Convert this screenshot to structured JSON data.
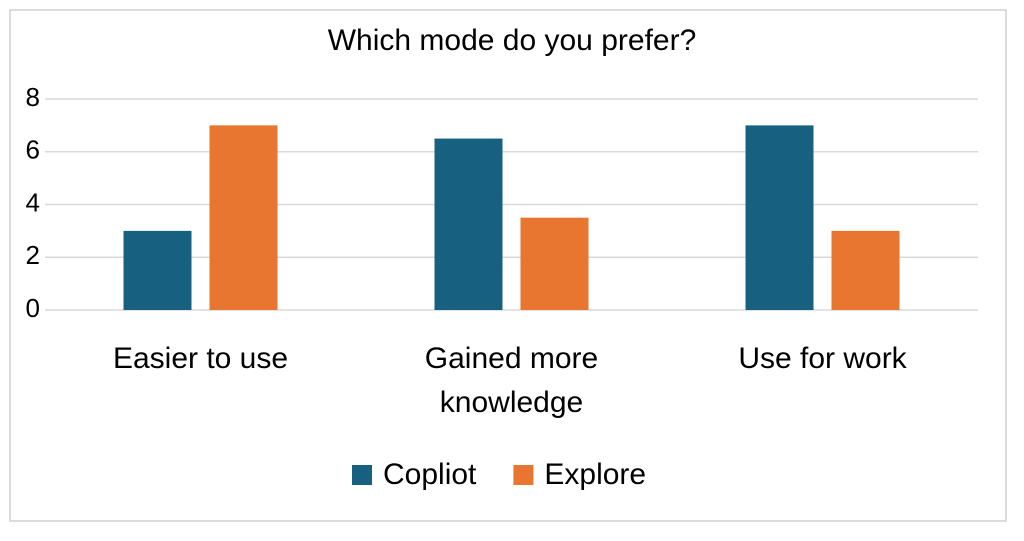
{
  "chart_data": {
    "type": "bar",
    "title": "Which mode do you prefer?",
    "categories": [
      "Easier to use",
      "Gained more knowledge",
      "Use for work"
    ],
    "series": [
      {
        "name": "Copliot",
        "color": "#17607f",
        "values": [
          3,
          6.5,
          7
        ]
      },
      {
        "name": "Explore",
        "color": "#e87530",
        "values": [
          7,
          3.5,
          3
        ]
      }
    ],
    "ylim": [
      0,
      8
    ],
    "yticks": [
      0,
      2,
      4,
      6,
      8
    ],
    "grid": true,
    "legend": "bottom"
  }
}
